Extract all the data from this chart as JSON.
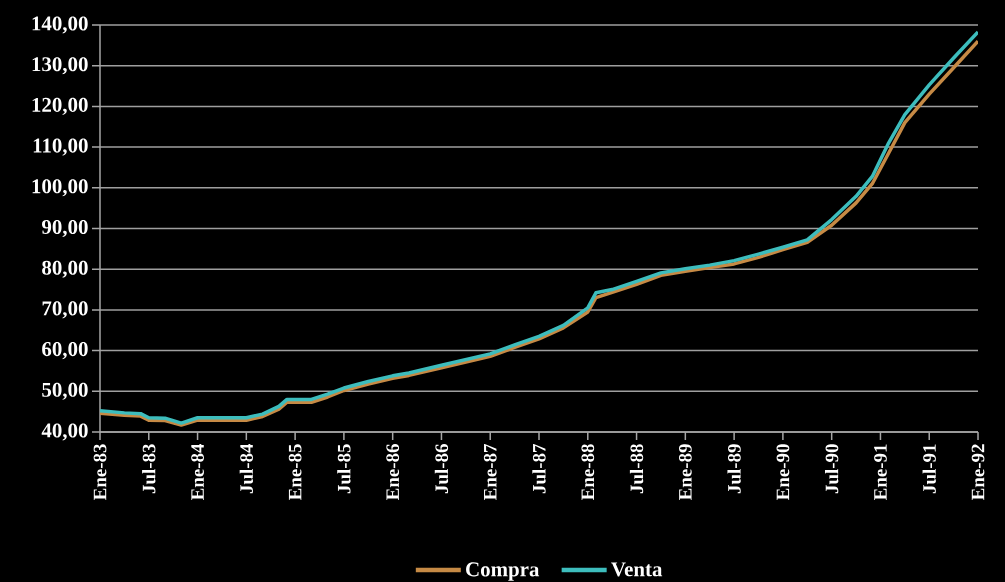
{
  "chart_data": {
    "type": "line",
    "x": [
      "1983-01",
      "1983-04",
      "1983-06",
      "1983-07",
      "1983-09",
      "1983-11",
      "1984-01",
      "1984-04",
      "1984-07",
      "1984-09",
      "1984-11",
      "1984-12",
      "1985-03",
      "1985-05",
      "1985-07",
      "1985-10",
      "1986-01",
      "1986-03",
      "1986-07",
      "1987-01",
      "1987-04",
      "1987-07",
      "1987-10",
      "1988-01",
      "1988-02",
      "1988-04",
      "1988-07",
      "1988-10",
      "1989-01",
      "1989-04",
      "1989-07",
      "1989-10",
      "1990-01",
      "1990-04",
      "1990-07",
      "1990-10",
      "1990-12",
      "1991-02",
      "1991-04",
      "1991-07",
      "1991-10",
      "1992-01"
    ],
    "series": [
      {
        "name": "Compra",
        "color": "#c68a45",
        "values": [
          44.6,
          44.1,
          43.9,
          42.9,
          42.8,
          41.7,
          42.9,
          42.9,
          42.9,
          43.8,
          45.6,
          47.3,
          47.3,
          48.6,
          50.2,
          51.8,
          53.2,
          53.9,
          55.8,
          58.6,
          60.8,
          62.9,
          65.6,
          69.5,
          73.0,
          74.3,
          76.3,
          78.5,
          79.5,
          80.4,
          81.3,
          82.9,
          84.8,
          86.6,
          90.8,
          96.3,
          101.0,
          108.5,
          116.0,
          123.0,
          129.5,
          136.0
        ]
      },
      {
        "name": "Venta",
        "color": "#3dbdbd",
        "values": [
          45.2,
          44.7,
          44.5,
          43.5,
          43.4,
          42.2,
          43.5,
          43.5,
          43.5,
          44.4,
          46.3,
          48.0,
          48.0,
          49.3,
          50.8,
          52.4,
          53.8,
          54.5,
          56.4,
          59.2,
          61.4,
          63.5,
          66.2,
          70.5,
          74.2,
          75.0,
          77.0,
          79.1,
          80.1,
          81.0,
          82.1,
          83.7,
          85.4,
          87.2,
          92.2,
          97.9,
          102.8,
          111.0,
          118.0,
          125.3,
          131.9,
          138.3
        ]
      }
    ],
    "xlim": [
      "1983-01",
      "1992-01"
    ],
    "xticks": [
      {
        "value": "1983-01",
        "label": "Ene-83"
      },
      {
        "value": "1983-07",
        "label": "Jul-83"
      },
      {
        "value": "1984-01",
        "label": "Ene-84"
      },
      {
        "value": "1984-07",
        "label": "Jul-84"
      },
      {
        "value": "1985-01",
        "label": "Ene-85"
      },
      {
        "value": "1985-07",
        "label": "Jul-85"
      },
      {
        "value": "1986-01",
        "label": "Ene-86"
      },
      {
        "value": "1986-07",
        "label": "Jul-86"
      },
      {
        "value": "1987-01",
        "label": "Ene-87"
      },
      {
        "value": "1987-07",
        "label": "Jul-87"
      },
      {
        "value": "1988-01",
        "label": "Ene-88"
      },
      {
        "value": "1988-07",
        "label": "Jul-88"
      },
      {
        "value": "1989-01",
        "label": "Ene-89"
      },
      {
        "value": "1989-07",
        "label": "Jul-89"
      },
      {
        "value": "1990-01",
        "label": "Ene-90"
      },
      {
        "value": "1990-07",
        "label": "Jul-90"
      },
      {
        "value": "1991-01",
        "label": "Ene-91"
      },
      {
        "value": "1991-07",
        "label": "Jul-91"
      },
      {
        "value": "1992-01",
        "label": "Ene-92"
      }
    ],
    "ylim": [
      40,
      140
    ],
    "yticks": [
      {
        "value": 40,
        "label": "40,00"
      },
      {
        "value": 50,
        "label": "50,00"
      },
      {
        "value": 60,
        "label": "60,00"
      },
      {
        "value": 70,
        "label": "70,00"
      },
      {
        "value": 80,
        "label": "80,00"
      },
      {
        "value": 90,
        "label": "90,00"
      },
      {
        "value": 100,
        "label": "100,00"
      },
      {
        "value": 110,
        "label": "110,00"
      },
      {
        "value": 120,
        "label": "120,00"
      },
      {
        "value": 130,
        "label": "130,00"
      },
      {
        "value": 140,
        "label": "140,00"
      }
    ],
    "grid": "y",
    "legend": "bottom"
  }
}
